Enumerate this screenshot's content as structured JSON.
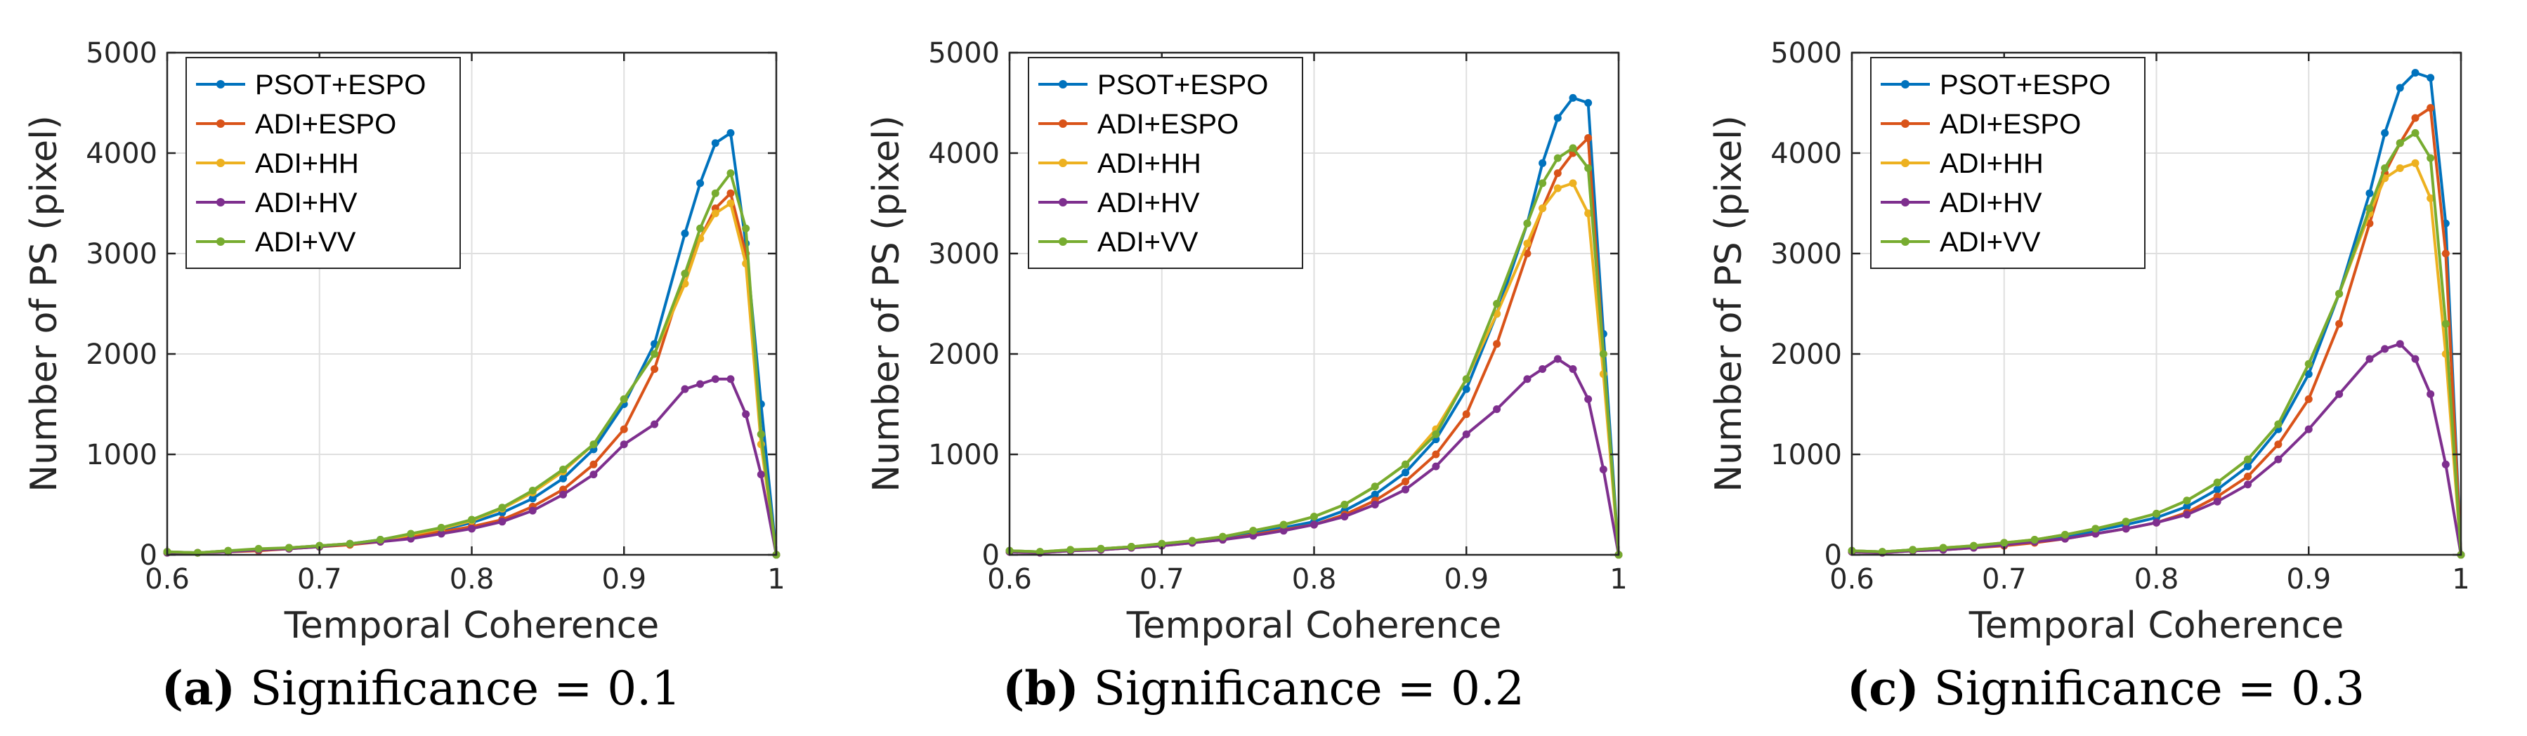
{
  "chart_data": [
    {
      "type": "line",
      "caption_tag": "(a)",
      "caption_text": "Significance = 0.1",
      "xlabel": "Temporal Coherence",
      "ylabel": "Number of PS (pixel)",
      "xlim": [
        0.6,
        1
      ],
      "ylim": [
        0,
        5000
      ],
      "xticks": [
        0.6,
        0.7,
        0.8,
        0.9,
        1
      ],
      "xtick_labels": [
        "0.6",
        "0.7",
        "0.8",
        "0.9",
        "1"
      ],
      "yticks": [
        0,
        1000,
        2000,
        3000,
        4000,
        5000
      ],
      "ytick_labels": [
        "0",
        "1000",
        "2000",
        "3000",
        "4000",
        "5000"
      ],
      "grid": true,
      "legend_position": "top-left",
      "x": [
        0.6,
        0.62,
        0.64,
        0.66,
        0.68,
        0.7,
        0.72,
        0.74,
        0.76,
        0.78,
        0.8,
        0.82,
        0.84,
        0.86,
        0.88,
        0.9,
        0.92,
        0.94,
        0.95,
        0.96,
        0.97,
        0.98,
        0.99,
        1
      ],
      "series": [
        {
          "name": "PSOT+ESPO",
          "color": "#0072BD",
          "values": [
            30,
            20,
            40,
            50,
            70,
            90,
            110,
            150,
            200,
            250,
            320,
            420,
            560,
            760,
            1050,
            1500,
            2100,
            3200,
            3700,
            4100,
            4200,
            3100,
            1500,
            0
          ]
        },
        {
          "name": "ADI+ESPO",
          "color": "#D95319",
          "values": [
            20,
            20,
            30,
            40,
            60,
            80,
            100,
            130,
            180,
            230,
            280,
            350,
            480,
            650,
            900,
            1250,
            1850,
            2800,
            3150,
            3450,
            3600,
            3000,
            1200,
            0
          ]
        },
        {
          "name": "ADI+HH",
          "color": "#EDB120",
          "values": [
            30,
            20,
            40,
            50,
            70,
            90,
            110,
            140,
            200,
            260,
            340,
            460,
            620,
            830,
            1100,
            1550,
            2000,
            2700,
            3150,
            3400,
            3500,
            2900,
            1100,
            0
          ]
        },
        {
          "name": "ADI+HV",
          "color": "#7E2F8E",
          "values": [
            20,
            20,
            30,
            50,
            60,
            80,
            110,
            130,
            160,
            210,
            260,
            330,
            440,
            600,
            800,
            1100,
            1300,
            1650,
            1700,
            1750,
            1750,
            1400,
            800,
            0
          ]
        },
        {
          "name": "ADI+VV",
          "color": "#77AC30",
          "values": [
            30,
            20,
            40,
            60,
            70,
            90,
            110,
            150,
            210,
            270,
            350,
            470,
            640,
            850,
            1100,
            1550,
            2000,
            2800,
            3250,
            3600,
            3800,
            3250,
            1200,
            0
          ]
        }
      ]
    },
    {
      "type": "line",
      "caption_tag": "(b)",
      "caption_text": "Significance = 0.2",
      "xlabel": "Temporal Coherence",
      "ylabel": "Number of PS (pixel)",
      "xlim": [
        0.6,
        1
      ],
      "ylim": [
        0,
        5000
      ],
      "xticks": [
        0.6,
        0.7,
        0.8,
        0.9,
        1
      ],
      "xtick_labels": [
        "0.6",
        "0.7",
        "0.8",
        "0.9",
        "1"
      ],
      "yticks": [
        0,
        1000,
        2000,
        3000,
        4000,
        5000
      ],
      "ytick_labels": [
        "0",
        "1000",
        "2000",
        "3000",
        "4000",
        "5000"
      ],
      "grid": true,
      "legend_position": "top-left",
      "x": [
        0.6,
        0.62,
        0.64,
        0.66,
        0.68,
        0.7,
        0.72,
        0.74,
        0.76,
        0.78,
        0.8,
        0.82,
        0.84,
        0.86,
        0.88,
        0.9,
        0.92,
        0.94,
        0.95,
        0.96,
        0.97,
        0.98,
        0.99,
        1
      ],
      "series": [
        {
          "name": "PSOT+ESPO",
          "color": "#0072BD",
          "values": [
            40,
            30,
            40,
            60,
            80,
            100,
            130,
            170,
            220,
            270,
            330,
            440,
            600,
            820,
            1150,
            1650,
            2400,
            3300,
            3900,
            4350,
            4550,
            4500,
            2200,
            0
          ]
        },
        {
          "name": "ADI+ESPO",
          "color": "#D95319",
          "values": [
            30,
            20,
            40,
            50,
            70,
            90,
            120,
            150,
            200,
            250,
            300,
            400,
            540,
            730,
            1000,
            1400,
            2100,
            3000,
            3450,
            3800,
            4000,
            4150,
            2000,
            0
          ]
        },
        {
          "name": "ADI+HH",
          "color": "#EDB120",
          "values": [
            40,
            30,
            50,
            60,
            80,
            110,
            140,
            180,
            240,
            300,
            380,
            500,
            680,
            900,
            1250,
            1750,
            2400,
            3100,
            3450,
            3650,
            3700,
            3400,
            1800,
            0
          ]
        },
        {
          "name": "ADI+HV",
          "color": "#7E2F8E",
          "values": [
            30,
            20,
            40,
            50,
            70,
            90,
            120,
            150,
            190,
            240,
            300,
            380,
            500,
            650,
            880,
            1200,
            1450,
            1750,
            1850,
            1950,
            1850,
            1550,
            850,
            0
          ]
        },
        {
          "name": "ADI+VV",
          "color": "#77AC30",
          "values": [
            40,
            30,
            50,
            60,
            80,
            110,
            140,
            180,
            240,
            300,
            380,
            500,
            680,
            900,
            1200,
            1750,
            2500,
            3300,
            3700,
            3950,
            4050,
            3850,
            2000,
            0
          ]
        }
      ]
    },
    {
      "type": "line",
      "caption_tag": "(c)",
      "caption_text": "Significance = 0.3",
      "xlabel": "Temporal Coherence",
      "ylabel": "Number of PS (pixel)",
      "xlim": [
        0.6,
        1
      ],
      "ylim": [
        0,
        5000
      ],
      "xticks": [
        0.6,
        0.7,
        0.8,
        0.9,
        1
      ],
      "xtick_labels": [
        "0.6",
        "0.7",
        "0.8",
        "0.9",
        "1"
      ],
      "yticks": [
        0,
        1000,
        2000,
        3000,
        4000,
        5000
      ],
      "ytick_labels": [
        "0",
        "1000",
        "2000",
        "3000",
        "4000",
        "5000"
      ],
      "grid": true,
      "legend_position": "top-left",
      "x": [
        0.6,
        0.62,
        0.64,
        0.66,
        0.68,
        0.7,
        0.72,
        0.74,
        0.76,
        0.78,
        0.8,
        0.82,
        0.84,
        0.86,
        0.88,
        0.9,
        0.92,
        0.94,
        0.95,
        0.96,
        0.97,
        0.98,
        0.99,
        1
      ],
      "series": [
        {
          "name": "PSOT+ESPO",
          "color": "#0072BD",
          "values": [
            40,
            30,
            50,
            60,
            80,
            110,
            140,
            180,
            240,
            300,
            370,
            480,
            650,
            880,
            1250,
            1800,
            2600,
            3600,
            4200,
            4650,
            4800,
            4750,
            3300,
            0
          ]
        },
        {
          "name": "ADI+ESPO",
          "color": "#D95319",
          "values": [
            30,
            20,
            40,
            50,
            70,
            90,
            120,
            160,
            210,
            260,
            320,
            420,
            580,
            780,
            1100,
            1550,
            2300,
            3300,
            3800,
            4100,
            4350,
            4450,
            3000,
            0
          ]
        },
        {
          "name": "ADI+HH",
          "color": "#EDB120",
          "values": [
            40,
            30,
            50,
            70,
            90,
            120,
            150,
            200,
            260,
            330,
            410,
            540,
            720,
            950,
            1300,
            1900,
            2600,
            3400,
            3750,
            3850,
            3900,
            3550,
            2000,
            0
          ]
        },
        {
          "name": "ADI+HV",
          "color": "#7E2F8E",
          "values": [
            30,
            20,
            40,
            50,
            70,
            100,
            130,
            160,
            210,
            260,
            320,
            400,
            530,
            700,
            950,
            1250,
            1600,
            1950,
            2050,
            2100,
            1950,
            1600,
            900,
            0
          ]
        },
        {
          "name": "ADI+VV",
          "color": "#77AC30",
          "values": [
            40,
            30,
            50,
            70,
            90,
            120,
            150,
            200,
            260,
            330,
            410,
            540,
            720,
            950,
            1300,
            1900,
            2600,
            3450,
            3850,
            4100,
            4200,
            3950,
            2300,
            0
          ]
        }
      ]
    }
  ]
}
